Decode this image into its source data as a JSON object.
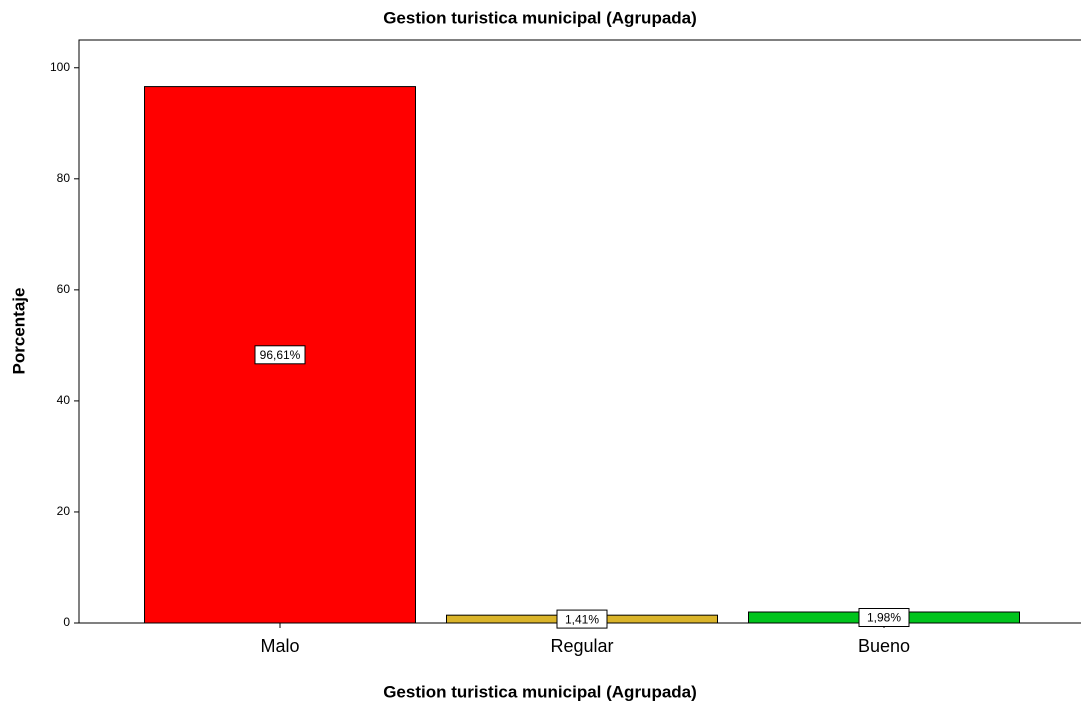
{
  "chart_data": {
    "type": "bar",
    "title": "Gestion turistica municipal (Agrupada)",
    "x_label": "Gestion turistica municipal (Agrupada)",
    "y_label": "Porcentaje",
    "categories": [
      "Malo",
      "Regular",
      "Bueno"
    ],
    "values": [
      96.61,
      1.41,
      1.98
    ],
    "value_labels": [
      "96,61%",
      "1,41%",
      "1,98%"
    ],
    "colors": [
      "#ff0000",
      "#dab42a",
      "#00c41c"
    ],
    "ylim": [
      0,
      105
    ],
    "yticks": [
      0,
      20,
      40,
      60,
      80,
      100
    ]
  }
}
